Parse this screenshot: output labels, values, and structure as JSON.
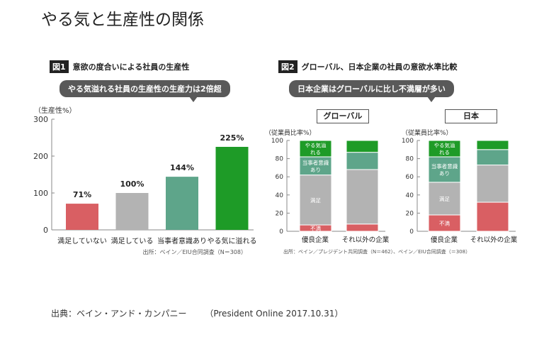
{
  "page_title": "やる気と生産性の関係",
  "source_line": {
    "left": "出典：ベイン・アンド・カンパニー",
    "right": "（President Online 2017.10.31）"
  },
  "chart_data": [
    {
      "type": "bar",
      "tag": "図1",
      "title": "意欲の度合いによる社員の生産性",
      "callout": "やる気溢れる社員の生産性の生産力は2倍超",
      "ylabel": "（生産性%）",
      "ylim": [
        0,
        300
      ],
      "yticks": [
        "0",
        "100",
        "200",
        "300"
      ],
      "categories": [
        "満足していない",
        "満足している",
        "当事者意識あり",
        "やる気に溢れる"
      ],
      "values": [
        71,
        100,
        144,
        225
      ],
      "value_labels": [
        "71%",
        "100%",
        "144%",
        "225%"
      ],
      "colors": [
        "#d95f63",
        "#b3b3b3",
        "#5ea58a",
        "#1e9b27"
      ],
      "note": "出所：ベイン／EIU合同調査（N＝308）"
    },
    {
      "type": "bar",
      "stacked": true,
      "tag": "図2",
      "title": "グローバル、日本企業の社員の意欲水準比較",
      "callout": "日本企業はグローバルに比し不満層が多い",
      "ylabel": "（従業員比率%）",
      "ylim": [
        0,
        100
      ],
      "yticks": [
        "0",
        "20",
        "40",
        "60",
        "80",
        "100"
      ],
      "segment_names": [
        "不満",
        "満足",
        "当事者意識あり",
        "やる気溢れる"
      ],
      "segment_colors": [
        "#d95f63",
        "#b3b3b3",
        "#5ea58a",
        "#1e9b27"
      ],
      "segment_labels": [
        "不満",
        "満足",
        "当事者意識\nあり",
        "やる気溢\nれる"
      ],
      "groups": [
        {
          "name": "グローバル",
          "categories": [
            "優良企業",
            "それ以外の企業"
          ],
          "stacks": [
            [
              7,
              55,
              20,
              18
            ],
            [
              8,
              60,
              19,
              13
            ]
          ]
        },
        {
          "name": "日本",
          "categories": [
            "優良企業",
            "それ以外の企業"
          ],
          "stacks": [
            [
              18,
              36,
              28,
              18
            ],
            [
              32,
              41,
              17,
              10
            ]
          ]
        }
      ],
      "note": "出所：ベイン／プレジデント共同調査（N＝462）、ベイン／EIU合同調査（＝308）"
    }
  ]
}
